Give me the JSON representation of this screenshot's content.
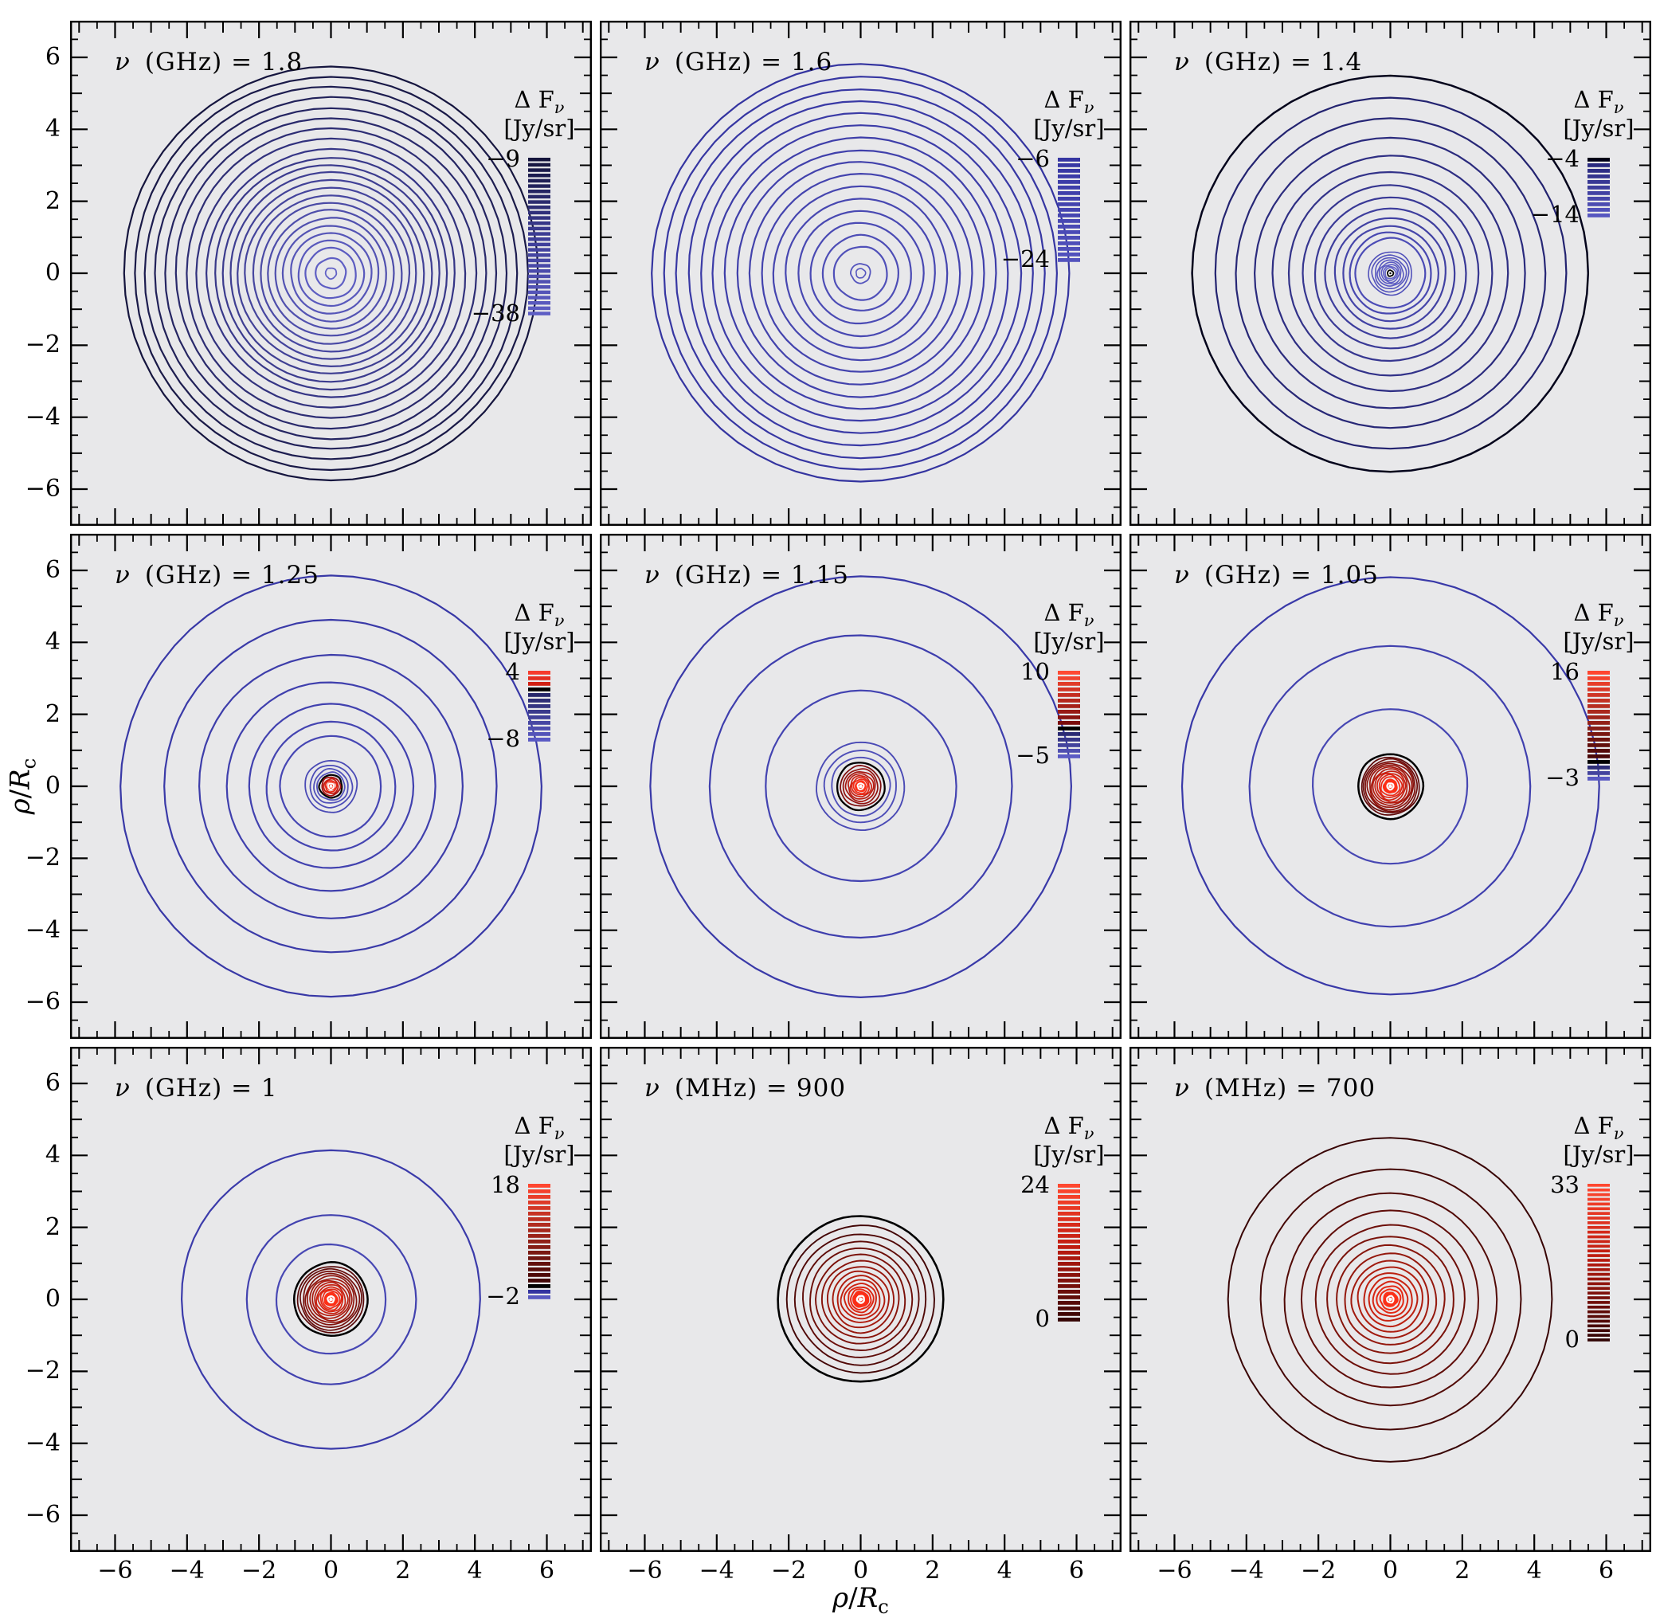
{
  "figure": {
    "background": "#ffffff",
    "panel_background": "#e8e8ea",
    "frame_color": "#000000"
  },
  "chart_data": {
    "type": "contour",
    "description": "3x3 grid of radio brightness contour maps at different observing frequencies",
    "x_range": [
      -7.25,
      7.25
    ],
    "tick_values": [
      -6,
      -4,
      -2,
      0,
      2,
      4,
      6
    ],
    "x_tick_labels": [
      "−6",
      "−4",
      "−2",
      "0",
      "2",
      "4",
      "6"
    ],
    "y_tick_labels": [
      "−6",
      "−4",
      "−2",
      "0",
      "2",
      "4",
      "6"
    ],
    "xlabel_parts": [
      {
        "style": "italic",
        "t": "ρ"
      },
      {
        "style": "normal",
        "t": "/"
      },
      {
        "style": "italic",
        "t": "R"
      },
      {
        "style": "sub",
        "t": "c"
      }
    ],
    "ylabel_parts": [
      {
        "style": "italic",
        "t": "ρ"
      },
      {
        "style": "normal",
        "t": "/"
      },
      {
        "style": "italic",
        "t": "R"
      },
      {
        "style": "sub",
        "t": "c"
      }
    ],
    "colorbar_title": {
      "main": "Δ F",
      "sub": "ν",
      "unit": "[Jy/sr]"
    },
    "panels": [
      {
        "label": {
          "nu": "ν",
          "unit": "GHz",
          "value": "1.8"
        },
        "colorbar": {
          "top": "−9",
          "bottom": "−38",
          "n": 30,
          "stops": [
            [
              0,
              "#14143c"
            ],
            [
              0.5,
              "#3d3d97"
            ],
            [
              1,
              "#5d5dc4"
            ]
          ]
        },
        "rings": [
          {
            "n": 9,
            "r0": 5.75,
            "r1": 3.45,
            "c0": "#15153e",
            "c1": "#353586"
          },
          {
            "n": 13,
            "r0": 3.22,
            "r1": 0.7,
            "c0": "#383889",
            "c1": "#5c5cc1"
          },
          {
            "r": 0.42,
            "c": "#5f5fc4"
          },
          {
            "r": 0.15,
            "c": "#6262c6",
            "w": 1.8
          }
        ],
        "center": []
      },
      {
        "label": {
          "nu": "ν",
          "unit": "GHz",
          "value": "1.6"
        },
        "colorbar": {
          "top": "−6",
          "bottom": "−24",
          "n": 19,
          "stops": [
            [
              0,
              "#3636a2"
            ],
            [
              1,
              "#5353bd"
            ]
          ]
        },
        "rings": [
          {
            "n": 14,
            "r0": 5.8,
            "r1": 1.4,
            "c0": "#3434a0",
            "c1": "#4a4ab4"
          },
          {
            "r": 1.05,
            "c": "#4d4db6"
          },
          {
            "r": 0.74,
            "c": "#5050b9"
          },
          {
            "r": 0.27,
            "c": "#5454bd",
            "w": 1.8
          },
          {
            "r": 0.13,
            "c": "#5757bf",
            "w": 1.6
          }
        ],
        "center": []
      },
      {
        "label": {
          "nu": "ν",
          "unit": "GHz",
          "value": "1.4"
        },
        "colorbar": {
          "top": "−4",
          "bottom": "−14",
          "n": 11,
          "stops": [
            [
              0,
              "#000016"
            ],
            [
              0.1,
              "#29297e"
            ],
            [
              1,
              "#5656c0"
            ]
          ]
        },
        "rings": [
          {
            "r": 5.5,
            "c": "#04041c",
            "w": 2.5
          },
          {
            "radii": [
              4.88,
              4.3,
              3.76,
              3.27,
              2.83,
              2.44,
              2.1,
              1.8,
              1.54,
              1.32,
              1.13,
              0.97
            ],
            "c0": "#232370",
            "c1": "#4c4cb6"
          },
          {
            "radii": [
              0.6,
              0.51,
              0.43,
              0.36,
              0.3,
              0.245,
              0.195,
              0.15
            ],
            "c0": "#5151ba",
            "c1": "#6262c7",
            "w": 1.6
          }
        ],
        "center": [
          {
            "shape": "disc",
            "r": 0.115,
            "c": "#ffffff"
          },
          {
            "shape": "ring",
            "r": 0.082,
            "c": "#000000",
            "w": 1.8
          },
          {
            "shape": "disc",
            "r": 0.026,
            "c": "#000000"
          }
        ]
      },
      {
        "label": {
          "nu": "ν",
          "unit": "GHz",
          "value": "1.25"
        },
        "colorbar": {
          "top": "4",
          "bottom": "−8",
          "n": 13,
          "stops": [
            [
              0,
              "#f63c2e"
            ],
            [
              0.1667,
              "#d02013"
            ],
            [
              0.25,
              "#000000"
            ],
            [
              0.3333,
              "#26266b"
            ],
            [
              1,
              "#5a5ac4"
            ]
          ]
        },
        "rings": [
          {
            "radii": [
              5.85,
              4.62,
              3.66,
              2.9,
              2.28,
              1.79,
              1.4
            ],
            "c0": "#3838a6",
            "c1": "#4646b3"
          },
          {
            "radii": [
              0.72,
              0.585,
              0.475,
              0.385
            ],
            "c0": "#4a4ab5",
            "c1": "#5454bc",
            "w": 1.8
          }
        ],
        "center": [
          {
            "shape": "ring",
            "r": 0.315,
            "c": "#000000",
            "w": 2.2
          },
          {
            "shape": "ring",
            "r": 0.255,
            "c": "#a31212",
            "w": 1.8
          },
          {
            "shape": "ring",
            "r": 0.2,
            "c": "#c81a10",
            "w": 1.8
          },
          {
            "shape": "ring",
            "r": 0.155,
            "c": "#e62413",
            "w": 1.8
          },
          {
            "shape": "disc",
            "r": 0.122,
            "c": "#f92d16"
          },
          {
            "shape": "ring",
            "r": 0.082,
            "c": "#ffffff",
            "w": 2.0
          },
          {
            "shape": "disc",
            "r": 0.044,
            "c": "#ffffff"
          }
        ]
      },
      {
        "label": {
          "nu": "ν",
          "unit": "GHz",
          "value": "1.15"
        },
        "colorbar": {
          "top": "10",
          "bottom": "−5",
          "n": 16,
          "stops": [
            [
              0,
              "#ff4a33"
            ],
            [
              0.6,
              "#7a0c0c"
            ],
            [
              0.6667,
              "#000000"
            ],
            [
              0.7333,
              "#2b2b74"
            ],
            [
              1,
              "#5b5bc4"
            ]
          ]
        },
        "rings": [
          {
            "radii": [
              5.85,
              4.2,
              2.65
            ],
            "c0": "#3939a8",
            "c1": "#4343b1"
          },
          {
            "radii": [
              1.22,
              1.0,
              0.81
            ],
            "c0": "#4a4ab5",
            "c1": "#5151ba",
            "w": 1.9
          },
          {
            "r": 0.66,
            "c": "#000000",
            "w": 2.3
          },
          {
            "radii": [
              0.56,
              0.48,
              0.41,
              0.35,
              0.29,
              0.24,
              0.195
            ],
            "c0": "#7e0d0d",
            "c1": "#f22c17",
            "w": 1.7
          }
        ],
        "center": [
          {
            "shape": "disc",
            "r": 0.163,
            "c": "#fe3118"
          },
          {
            "shape": "ring",
            "r": 0.085,
            "c": "#ffffff",
            "w": 2.0
          },
          {
            "shape": "disc",
            "r": 0.048,
            "c": "#ffffff"
          }
        ]
      },
      {
        "label": {
          "nu": "ν",
          "unit": "GHz",
          "value": "1.05"
        },
        "colorbar": {
          "top": "16",
          "bottom": "−3",
          "n": 20,
          "stops": [
            [
              0,
              "#ff4630"
            ],
            [
              0.7895,
              "#4a0707"
            ],
            [
              0.8421,
              "#000000"
            ],
            [
              0.8947,
              "#2e2e78"
            ],
            [
              1,
              "#5a5ac3"
            ]
          ]
        },
        "rings": [
          {
            "radii": [
              5.8,
              3.9,
              2.15
            ],
            "c0": "#3939a8",
            "c1": "#4747b3"
          },
          {
            "r": 0.9,
            "c": "#000000",
            "w": 2.5
          },
          {
            "radii": [
              0.8,
              0.746,
              0.692,
              0.638,
              0.584,
              0.53,
              0.476,
              0.422,
              0.368,
              0.314,
              0.26
            ],
            "c0": "#5d0808",
            "c1": "#ee2814",
            "w": 1.7
          }
        ],
        "center": [
          {
            "shape": "disc",
            "r": 0.205,
            "c": "#fc2f17"
          },
          {
            "shape": "ring",
            "r": 0.088,
            "c": "#ffffff",
            "w": 2.2
          },
          {
            "shape": "disc",
            "r": 0.05,
            "c": "#ffffff"
          }
        ]
      },
      {
        "label": {
          "nu": "ν",
          "unit": "GHz",
          "value": "1"
        },
        "colorbar": {
          "top": "18",
          "bottom": "−2",
          "n": 21,
          "stops": [
            [
              0,
              "#ff4630"
            ],
            [
              0.85,
              "#420606"
            ],
            [
              0.9,
              "#000000"
            ],
            [
              0.95,
              "#3333a0"
            ],
            [
              1,
              "#5858c0"
            ]
          ]
        },
        "rings": [
          {
            "radii": [
              4.15,
              2.35,
              1.52
            ],
            "c0": "#3b3baa",
            "c1": "#4848b4"
          },
          {
            "r": 1.02,
            "c": "#000000",
            "w": 2.5
          },
          {
            "radii": [
              0.92,
              0.85,
              0.78,
              0.71,
              0.65,
              0.58,
              0.52,
              0.46,
              0.4,
              0.34,
              0.29,
              0.24
            ],
            "c0": "#570808",
            "c1": "#ef2914",
            "w": 1.7
          }
        ],
        "center": [
          {
            "shape": "disc",
            "r": 0.2,
            "c": "#fd3017"
          },
          {
            "shape": "ring",
            "r": 0.088,
            "c": "#ffffff",
            "w": 2.2
          },
          {
            "shape": "disc",
            "r": 0.05,
            "c": "#ffffff"
          }
        ]
      },
      {
        "label": {
          "nu": "ν",
          "unit": "MHz",
          "value": "900"
        },
        "colorbar": {
          "top": "24",
          "bottom": "0",
          "n": 25,
          "stops": [
            [
              0,
              "#ff4830"
            ],
            [
              0.45,
              "#c11c10"
            ],
            [
              1,
              "#360505"
            ]
          ]
        },
        "rings": [
          {
            "r": 2.3,
            "c": "#000000",
            "w": 2.6
          },
          {
            "radii": [
              2.05,
              1.82,
              1.61,
              1.42,
              1.24,
              1.07,
              0.92,
              0.78,
              0.65,
              0.54,
              0.44,
              0.35,
              0.28
            ],
            "c0": "#420505",
            "c1": "#e92712",
            "w": 1.9
          }
        ],
        "center": [
          {
            "shape": "disc",
            "r": 0.235,
            "c": "#fb2e16"
          },
          {
            "shape": "ring",
            "r": 0.098,
            "c": "#ffffff",
            "w": 2.4
          },
          {
            "shape": "disc",
            "r": 0.055,
            "c": "#ffffff"
          }
        ]
      },
      {
        "label": {
          "nu": "ν",
          "unit": "MHz",
          "value": "700"
        },
        "colorbar": {
          "top": "33",
          "bottom": "0",
          "n": 34,
          "stops": [
            [
              0,
              "#ff4830"
            ],
            [
              0.45,
              "#bf1b10"
            ],
            [
              1,
              "#300404"
            ]
          ]
        },
        "rings": [
          {
            "radii": [
              4.5,
              3.62,
              2.95,
              2.46,
              2.07,
              1.76,
              1.5,
              1.27,
              1.07,
              0.9,
              0.74,
              0.6,
              0.48,
              0.37,
              0.28
            ],
            "c0": "#380404",
            "c1": "#f02b15",
            "w": 2.0
          }
        ],
        "center": [
          {
            "shape": "disc",
            "r": 0.215,
            "c": "#fb3018"
          },
          {
            "shape": "ring",
            "r": 0.092,
            "c": "#ffffff",
            "w": 2.2
          },
          {
            "shape": "disc",
            "r": 0.05,
            "c": "#ffffff"
          }
        ]
      }
    ]
  }
}
